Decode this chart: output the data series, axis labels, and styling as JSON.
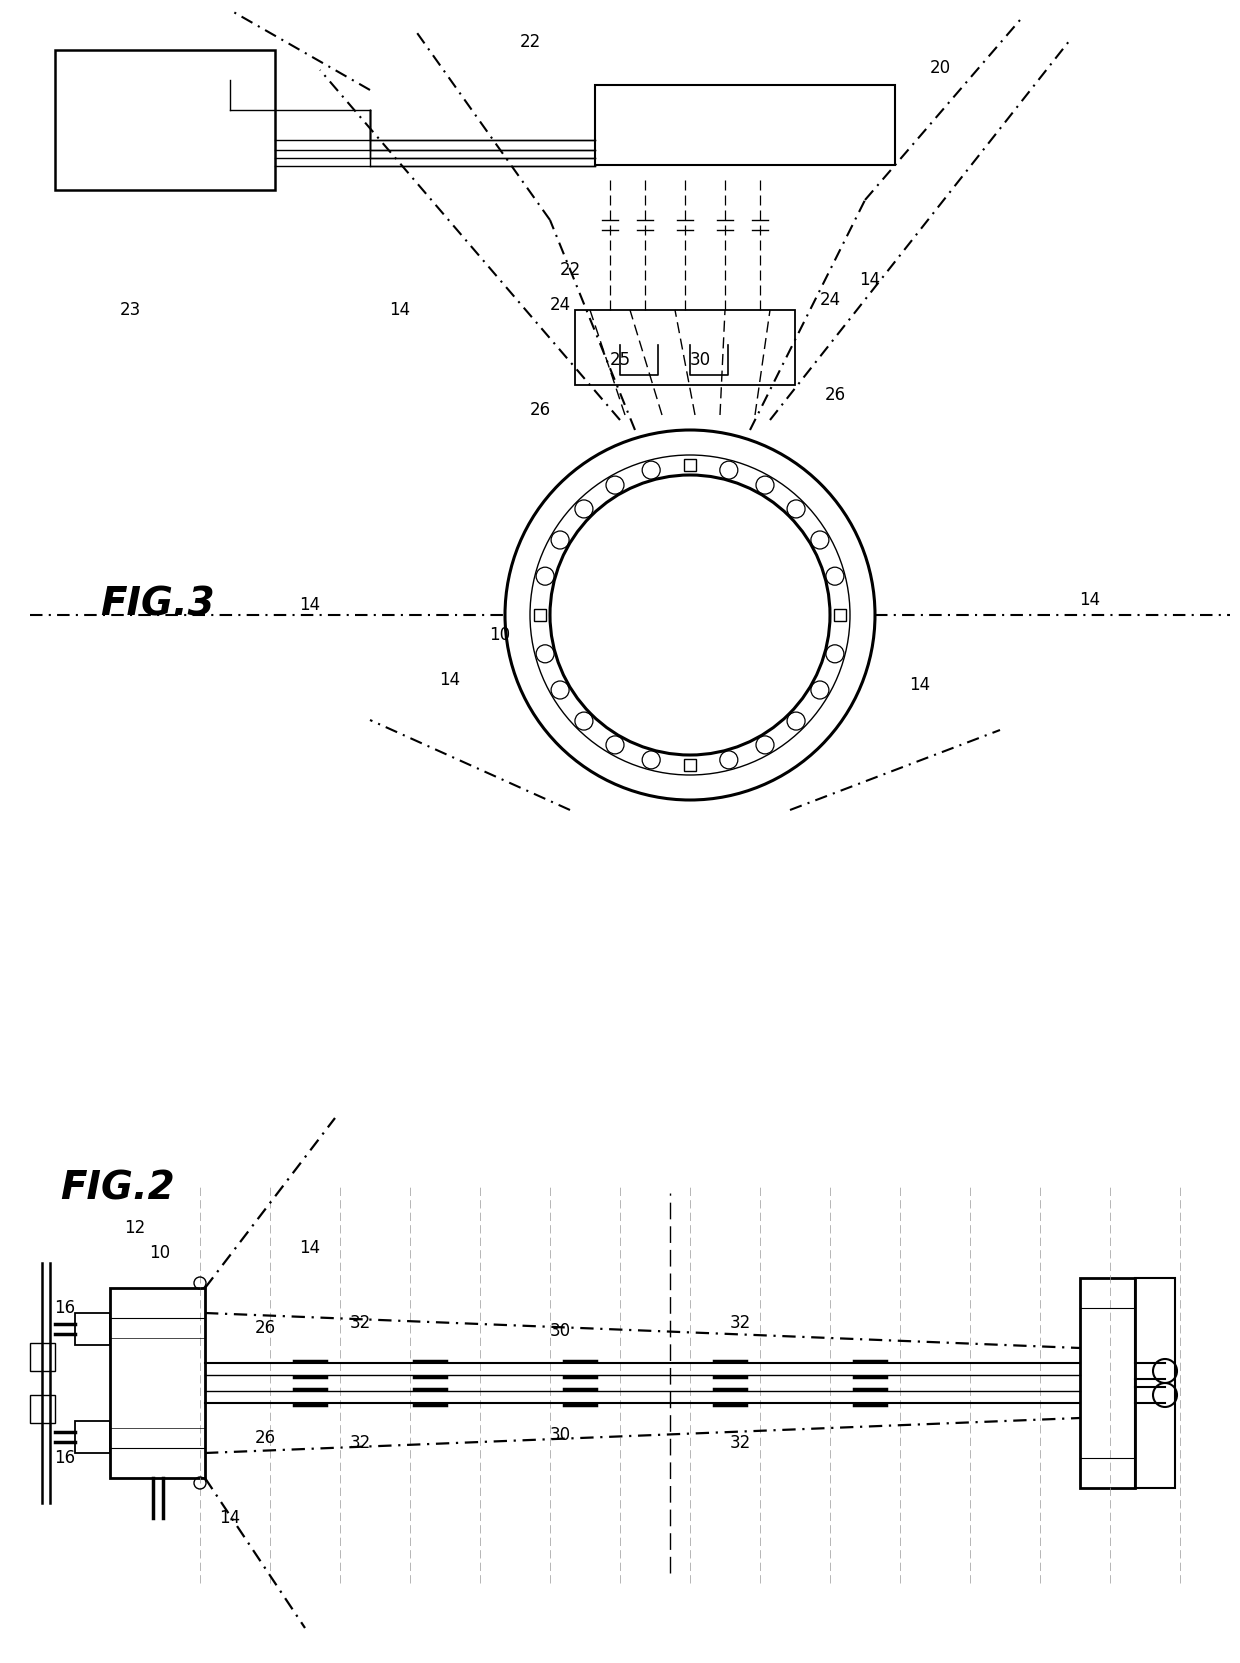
{
  "bg_color": "#ffffff",
  "line_color": "#000000",
  "fig_width": 12.4,
  "fig_height": 16.63,
  "fig2_label": "FIG.2",
  "fig3_label": "FIG.3"
}
